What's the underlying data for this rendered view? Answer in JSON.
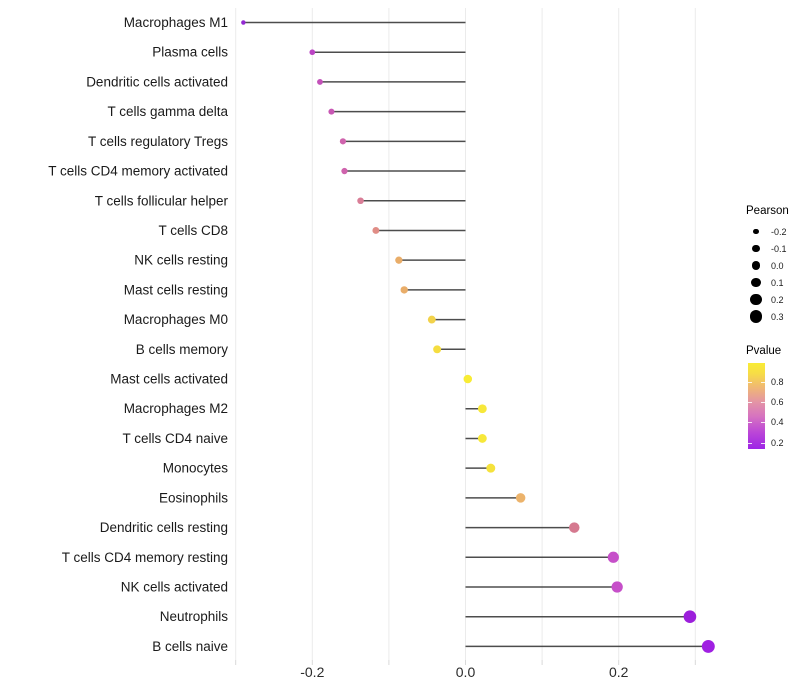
{
  "chart_data": {
    "type": "scatter",
    "subtype": "lollipop",
    "orientation": "horizontal",
    "title": "",
    "xlabel": "",
    "ylabel": "",
    "xlim": [
      -0.3,
      0.32
    ],
    "x_ticks": [
      -0.2,
      0.0,
      0.2
    ],
    "x_tick_labels": [
      "-0.2",
      "0.0",
      "0.2"
    ],
    "gridlines_x": [
      -0.3,
      -0.2,
      -0.1,
      0.0,
      0.1,
      0.2,
      0.3
    ],
    "grid_on": true,
    "points": [
      {
        "label": "Macrophages M1",
        "pearson": -0.29,
        "color": "#9329d2"
      },
      {
        "label": "Plasma cells",
        "pearson": -0.2,
        "color": "#bb44c4"
      },
      {
        "label": "Dendritic cells activated",
        "pearson": -0.19,
        "color": "#c351b9"
      },
      {
        "label": "T cells gamma delta",
        "pearson": -0.175,
        "color": "#c857b4"
      },
      {
        "label": "T cells regulatory  Tregs",
        "pearson": -0.16,
        "color": "#cf63ad"
      },
      {
        "label": "T cells CD4 memory activated",
        "pearson": -0.158,
        "color": "#cf63ad"
      },
      {
        "label": "T cells follicular helper",
        "pearson": -0.137,
        "color": "#d97e97"
      },
      {
        "label": "T cells CD8",
        "pearson": -0.117,
        "color": "#e08d86"
      },
      {
        "label": "NK cells resting",
        "pearson": -0.087,
        "color": "#e9ad69"
      },
      {
        "label": "Mast cells resting",
        "pearson": -0.08,
        "color": "#e9ad69"
      },
      {
        "label": "Macrophages M0",
        "pearson": -0.044,
        "color": "#f2d24a"
      },
      {
        "label": "B cells memory",
        "pearson": -0.037,
        "color": "#f5dd40"
      },
      {
        "label": "Mast cells activated",
        "pearson": 0.003,
        "color": "#f8ec35"
      },
      {
        "label": "Macrophages M2",
        "pearson": 0.022,
        "color": "#f7e83a"
      },
      {
        "label": "T cells CD4 naive",
        "pearson": 0.022,
        "color": "#f7e83a"
      },
      {
        "label": "Monocytes",
        "pearson": 0.033,
        "color": "#f5e23c"
      },
      {
        "label": "Eosinophils",
        "pearson": 0.072,
        "color": "#ecb36b"
      },
      {
        "label": "Dendritic cells resting",
        "pearson": 0.142,
        "color": "#d5798f"
      },
      {
        "label": "T cells CD4 memory resting",
        "pearson": 0.193,
        "color": "#c64fc9"
      },
      {
        "label": "NK cells activated",
        "pearson": 0.198,
        "color": "#c64fc9"
      },
      {
        "label": "Neutrophils",
        "pearson": 0.293,
        "color": "#9c1fdb"
      },
      {
        "label": "B cells naive",
        "pearson": 0.317,
        "color": "#a020e2"
      }
    ],
    "legends": {
      "size": {
        "title": "Pearson",
        "entries": [
          {
            "label": "-0.2",
            "value": -0.2
          },
          {
            "label": "-0.1",
            "value": -0.1
          },
          {
            "label": "0.0",
            "value": 0.0
          },
          {
            "label": "0.1",
            "value": 0.1
          },
          {
            "label": "0.2",
            "value": 0.2
          },
          {
            "label": "0.3",
            "value": 0.3
          }
        ]
      },
      "color": {
        "title": "Pvalue",
        "ticks": [
          {
            "label": "0.8",
            "pos": 0.226
          },
          {
            "label": "0.6",
            "pos": 0.45
          },
          {
            "label": "0.4",
            "pos": 0.69
          },
          {
            "label": "0.2",
            "pos": 0.93
          }
        ],
        "gradient": [
          {
            "stop": 0,
            "color": "#f9ec35"
          },
          {
            "stop": 12,
            "color": "#f7dd46"
          },
          {
            "stop": 28,
            "color": "#f0b873"
          },
          {
            "stop": 45,
            "color": "#e495a4"
          },
          {
            "stop": 62,
            "color": "#d673c0"
          },
          {
            "stop": 80,
            "color": "#bc48d6"
          },
          {
            "stop": 100,
            "color": "#9d25e6"
          }
        ]
      }
    },
    "style": {
      "grid_color": "#ebebeb",
      "tick_color": "#d9d9d9",
      "stem_color": "#3a3a3a",
      "axis_text_color": "#2b2b2b",
      "category_text_color": "#1a1a1a"
    }
  }
}
